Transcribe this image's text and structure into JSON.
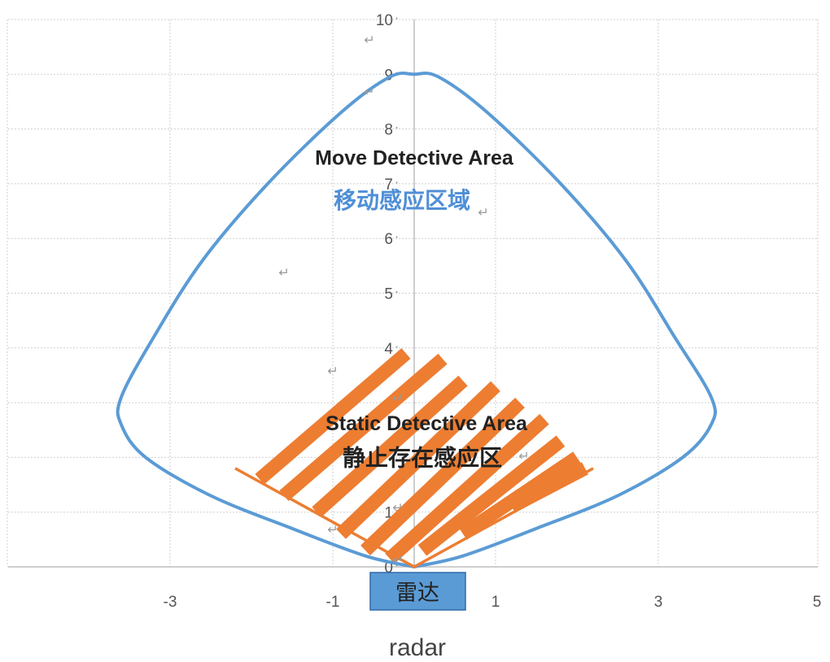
{
  "chart_data": {
    "type": "area",
    "title": "",
    "xlabel": "radar",
    "ylabel": "",
    "xlim": [
      -5,
      5
    ],
    "ylim": [
      0,
      10
    ],
    "grid": true,
    "x_ticks": [
      {
        "value": -3,
        "label": "-3"
      },
      {
        "value": -1,
        "label": "-1"
      },
      {
        "value": 1,
        "label": "1"
      },
      {
        "value": 3,
        "label": "3"
      },
      {
        "value": 5,
        "label": "5"
      }
    ],
    "y_ticks": [
      {
        "value": 0,
        "label": "0"
      },
      {
        "value": 1,
        "label": "1"
      },
      {
        "value": 2,
        "label": ""
      },
      {
        "value": 3,
        "label": ""
      },
      {
        "value": 4,
        "label": "4"
      },
      {
        "value": 5,
        "label": "5"
      },
      {
        "value": 6,
        "label": "6"
      },
      {
        "value": 7,
        "label": "7"
      },
      {
        "value": 8,
        "label": "8"
      },
      {
        "value": 9,
        "label": "9"
      },
      {
        "value": 10,
        "label": "10"
      }
    ],
    "series": [
      {
        "color": "#5b9bd5",
        "points": [
          [
            0,
            0
          ],
          [
            -0.6,
            0.2
          ],
          [
            -1.5,
            0.7
          ],
          [
            -2.5,
            1.3
          ],
          [
            -3.3,
            2.0
          ],
          [
            -3.6,
            2.6
          ],
          [
            -3.6,
            3.1
          ],
          [
            -3.2,
            4.2
          ],
          [
            -2.6,
            5.6
          ],
          [
            -1.8,
            7.0
          ],
          [
            -0.9,
            8.3
          ],
          [
            -0.3,
            8.95
          ],
          [
            0,
            9.0
          ],
          [
            0.3,
            8.95
          ],
          [
            0.9,
            8.3
          ],
          [
            1.8,
            7.0
          ],
          [
            2.6,
            5.6
          ],
          [
            3.2,
            4.2
          ],
          [
            3.65,
            3.1
          ],
          [
            3.65,
            2.6
          ],
          [
            3.3,
            2.0
          ],
          [
            2.5,
            1.3
          ],
          [
            1.5,
            0.7
          ],
          [
            0.6,
            0.2
          ],
          [
            0,
            0
          ]
        ]
      },
      {
        "color": "#ed7d31",
        "points": [
          [
            -2.2,
            1.8
          ],
          [
            0,
            0
          ],
          [
            2.2,
            1.8
          ]
        ]
      }
    ],
    "stripes": {
      "color": "#ed7d31",
      "segments": [
        [
          [
            -1.9,
            1.6
          ],
          [
            -0.1,
            3.9
          ]
        ],
        [
          [
            -1.6,
            1.3
          ],
          [
            0.35,
            3.8
          ]
        ],
        [
          [
            -1.2,
            1.0
          ],
          [
            0.6,
            3.4
          ]
        ],
        [
          [
            -0.9,
            0.6
          ],
          [
            1.0,
            3.3
          ]
        ],
        [
          [
            -0.6,
            0.3
          ],
          [
            1.3,
            3.0
          ]
        ],
        [
          [
            -0.3,
            0.15
          ],
          [
            1.6,
            2.7
          ]
        ],
        [
          [
            0.1,
            0.3
          ],
          [
            1.8,
            2.3
          ]
        ],
        [
          [
            0.6,
            0.6
          ],
          [
            2.0,
            2.0
          ]
        ],
        [
          [
            1.2,
            1.1
          ],
          [
            2.1,
            1.8
          ]
        ]
      ]
    },
    "annotations": [
      {
        "id": "move-en",
        "text": "Move Detective Area",
        "x": 0,
        "y": 7.35,
        "cls": "ann-en"
      },
      {
        "id": "move-cn",
        "text": "移动感应区域",
        "x": -0.15,
        "y": 6.55,
        "cls": "ann-cn-blue"
      },
      {
        "id": "static-en",
        "text": "Static Detective Area",
        "x": 0.15,
        "y": 2.5,
        "cls": "ann-en"
      },
      {
        "id": "static-cn",
        "text": "静止存在感应区",
        "x": 0.1,
        "y": 1.85,
        "cls": "ann-cn-dark"
      }
    ],
    "return_marks": [
      {
        "x": -0.55,
        "y": 9.55
      },
      {
        "x": -0.55,
        "y": 8.6
      },
      {
        "x": -1.6,
        "y": 5.3
      },
      {
        "x": -1.0,
        "y": 3.5
      },
      {
        "x": -1.0,
        "y": 0.6
      },
      {
        "x": 0.85,
        "y": 6.4
      },
      {
        "x": 1.35,
        "y": 1.95
      },
      {
        "x": -0.2,
        "y": 3.0
      },
      {
        "x": -0.2,
        "y": 1.0
      },
      {
        "x": -0.2,
        "y": 0.05
      },
      {
        "x": 0.45,
        "y": -0.5
      }
    ],
    "radar_box": {
      "label": "雷达",
      "fill": "#5b9bd5"
    }
  }
}
